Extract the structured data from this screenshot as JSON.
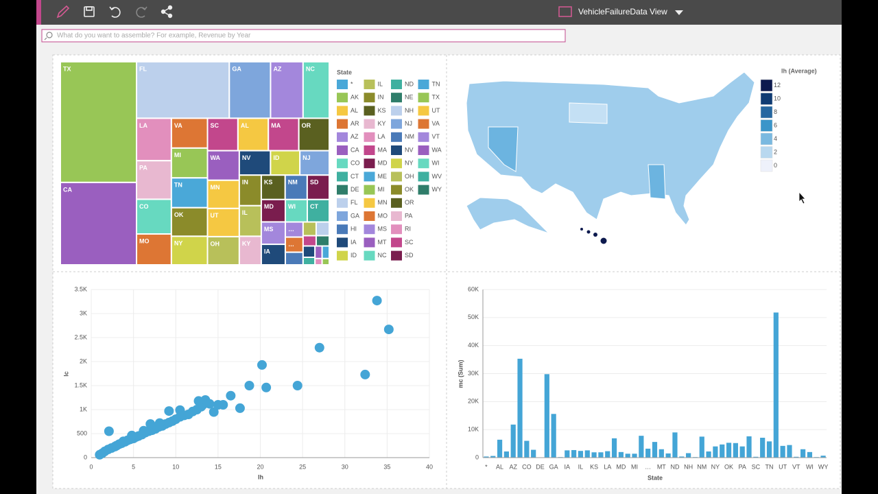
{
  "toolbar": {
    "view_title": "VehicleFailureData View"
  },
  "search": {
    "placeholder": "What do you want to assemble? For example, Revenue by Year"
  },
  "chart_data": [
    {
      "type": "treemap",
      "legend_title": "State",
      "legend": [
        {
          "name": "*",
          "color": "#4aa8d8"
        },
        {
          "name": "AK",
          "color": "#98c656"
        },
        {
          "name": "AL",
          "color": "#f5c842"
        },
        {
          "name": "AR",
          "color": "#dd7634"
        },
        {
          "name": "AZ",
          "color": "#a387dc"
        },
        {
          "name": "CA",
          "color": "#9a5fbf"
        },
        {
          "name": "CO",
          "color": "#67d9c0"
        },
        {
          "name": "CT",
          "color": "#3fb0a0"
        },
        {
          "name": "DE",
          "color": "#2f7d6a"
        },
        {
          "name": "FL",
          "color": "#bcd0ec"
        },
        {
          "name": "GA",
          "color": "#7ea6dc"
        },
        {
          "name": "HI",
          "color": "#4a7ab8"
        },
        {
          "name": "IA",
          "color": "#1f4a7a"
        },
        {
          "name": "ID",
          "color": "#d0d44a"
        },
        {
          "name": "IL",
          "color": "#b8c05a"
        },
        {
          "name": "IN",
          "color": "#8b8b2a"
        },
        {
          "name": "KS",
          "color": "#5a6020"
        },
        {
          "name": "KY",
          "color": "#e8b8d0"
        },
        {
          "name": "LA",
          "color": "#e28fbd"
        },
        {
          "name": "MA",
          "color": "#c2478c"
        },
        {
          "name": "MD",
          "color": "#7a1d4e"
        },
        {
          "name": "ME",
          "color": "#4aa8d8"
        },
        {
          "name": "MI",
          "color": "#98c656"
        },
        {
          "name": "MN",
          "color": "#f5c842"
        },
        {
          "name": "MO",
          "color": "#dd7634"
        },
        {
          "name": "MS",
          "color": "#a387dc"
        },
        {
          "name": "MT",
          "color": "#9a5fbf"
        },
        {
          "name": "NC",
          "color": "#67d9c0"
        },
        {
          "name": "ND",
          "color": "#3fb0a0"
        },
        {
          "name": "NE",
          "color": "#2f7d6a"
        },
        {
          "name": "NH",
          "color": "#bcd0ec"
        },
        {
          "name": "NJ",
          "color": "#7ea6dc"
        },
        {
          "name": "NM",
          "color": "#4a7ab8"
        },
        {
          "name": "NV",
          "color": "#1f4a7a"
        },
        {
          "name": "NY",
          "color": "#d0d44a"
        },
        {
          "name": "OH",
          "color": "#b8c05a"
        },
        {
          "name": "OK",
          "color": "#8b8b2a"
        },
        {
          "name": "OR",
          "color": "#5a6020"
        },
        {
          "name": "PA",
          "color": "#e8b8d0"
        },
        {
          "name": "RI",
          "color": "#e28fbd"
        },
        {
          "name": "SC",
          "color": "#c2478c"
        },
        {
          "name": "SD",
          "color": "#7a1d4e"
        },
        {
          "name": "TN",
          "color": "#4aa8d8"
        },
        {
          "name": "TX",
          "color": "#98c656"
        },
        {
          "name": "UT",
          "color": "#f5c842"
        },
        {
          "name": "VA",
          "color": "#dd7634"
        },
        {
          "name": "VT",
          "color": "#a387dc"
        },
        {
          "name": "WA",
          "color": "#9a5fbf"
        },
        {
          "name": "WI",
          "color": "#67d9c0"
        },
        {
          "name": "WV",
          "color": "#3fb0a0"
        },
        {
          "name": "WY",
          "color": "#2f7d6a"
        }
      ],
      "tiles": [
        {
          "label": "TX",
          "value": 205,
          "color": "#98c656"
        },
        {
          "label": "CA",
          "value": 140,
          "color": "#9a5fbf"
        },
        {
          "label": "FL",
          "value": 117,
          "color": "#bcd0ec"
        },
        {
          "label": "GA",
          "value": 52,
          "color": "#7ea6dc"
        },
        {
          "label": "AZ",
          "value": 41,
          "color": "#a387dc"
        },
        {
          "label": "NC",
          "value": 33,
          "color": "#67d9c0"
        },
        {
          "label": "LA",
          "value": 33,
          "color": "#e28fbd"
        },
        {
          "label": "PA",
          "value": 30,
          "color": "#e8b8d0"
        },
        {
          "label": "CO",
          "value": 27,
          "color": "#67d9c0"
        },
        {
          "label": "MO",
          "value": 24,
          "color": "#dd7634"
        },
        {
          "label": "VA",
          "value": 24,
          "color": "#dd7634"
        },
        {
          "label": "MI",
          "value": 24,
          "color": "#98c656"
        },
        {
          "label": "TN",
          "value": 24,
          "color": "#4aa8d8"
        },
        {
          "label": "OK",
          "value": 23,
          "color": "#8b8b2a"
        },
        {
          "label": "NY",
          "value": 23,
          "color": "#d0d44a"
        },
        {
          "label": "SC",
          "value": 22,
          "color": "#c2478c"
        },
        {
          "label": "AL",
          "value": 22,
          "color": "#f5c842"
        },
        {
          "label": "MA",
          "value": 22,
          "color": "#c2478c"
        },
        {
          "label": "OR",
          "value": 22,
          "color": "#5a6020"
        },
        {
          "label": "WA",
          "value": 21,
          "color": "#9a5fbf"
        },
        {
          "label": "MN",
          "value": 20,
          "color": "#f5c842"
        },
        {
          "label": "UT",
          "value": 20,
          "color": "#f5c842"
        },
        {
          "label": "OH",
          "value": 20,
          "color": "#b8c05a"
        },
        {
          "label": "NV",
          "value": 17,
          "color": "#1f4a7a"
        },
        {
          "label": "ID",
          "value": 16,
          "color": "#d0d44a"
        },
        {
          "label": "NJ",
          "value": 16,
          "color": "#7ea6dc"
        },
        {
          "label": "IN",
          "value": 15,
          "color": "#8b8b2a"
        },
        {
          "label": "IL",
          "value": 15,
          "color": "#b8c05a"
        },
        {
          "label": "KY",
          "value": 14,
          "color": "#e8b8d0"
        },
        {
          "label": "KS",
          "value": 13,
          "color": "#5a6020"
        },
        {
          "label": "NM",
          "value": 12,
          "color": "#4a7ab8"
        },
        {
          "label": "SD",
          "value": 12,
          "color": "#7a1d4e"
        },
        {
          "label": "MD",
          "value": 12,
          "color": "#7a1d4e"
        },
        {
          "label": "MS",
          "value": 12,
          "color": "#a387dc"
        },
        {
          "label": "IA",
          "value": 11,
          "color": "#1f4a7a"
        },
        {
          "label": "WI",
          "value": 11,
          "color": "#67d9c0"
        },
        {
          "label": "CT",
          "value": 11,
          "color": "#3fb0a0"
        },
        {
          "label": "…",
          "value": 6,
          "color": "#a387dc"
        },
        {
          "label": "…",
          "value": 6,
          "color": "#dd7634"
        },
        {
          "label": null,
          "value": 5,
          "color": "#4a7ab8"
        },
        {
          "label": null,
          "value": 4,
          "color": "#b8c05a"
        },
        {
          "label": null,
          "value": 4,
          "color": "#bcd0ec"
        },
        {
          "label": null,
          "value": 3,
          "color": "#c2478c"
        },
        {
          "label": null,
          "value": 3,
          "color": "#2f7d6a"
        },
        {
          "label": null,
          "value": 3,
          "color": "#1f4a7a"
        },
        {
          "label": null,
          "value": 2,
          "color": "#3fb0a0"
        },
        {
          "label": null,
          "value": 2,
          "color": "#9a5fbf"
        },
        {
          "label": null,
          "value": 2,
          "color": "#4aa8d8"
        },
        {
          "label": null,
          "value": 1,
          "color": "#e28fbd"
        },
        {
          "label": null,
          "value": 1,
          "color": "#98c656"
        }
      ]
    },
    {
      "type": "choropleth",
      "legend_title": "lh (Average)",
      "legend_ticks": [
        12,
        10,
        8,
        6,
        4,
        2,
        0
      ],
      "legend_colors": [
        "#0d1a4e",
        "#0f3b73",
        "#2566a0",
        "#3a95c9",
        "#7ab9e0",
        "#b8d8ef",
        "#eef1fb"
      ]
    },
    {
      "type": "scatter",
      "x_label": "lh",
      "y_label": "lc",
      "color": "#44a5d6",
      "grid": true,
      "xlim": [
        0,
        40
      ],
      "xticks": [
        0,
        5,
        10,
        15,
        20,
        25,
        30,
        35,
        40
      ],
      "ylim": [
        0,
        3500
      ],
      "yticks": [
        0,
        500,
        {
          "value": 1000,
          "label": "1K"
        },
        {
          "value": 1500,
          "label": "1.5K"
        },
        {
          "value": 2000,
          "label": "2K"
        },
        {
          "value": 2500,
          "label": "2.5K"
        },
        {
          "value": 3000,
          "label": "3K"
        },
        {
          "value": 3500,
          "label": "3.5K"
        }
      ],
      "x": [
        1,
        1.3,
        1.6,
        2,
        2.4,
        2.8,
        3,
        3.3,
        3.6,
        4,
        4.3,
        4.6,
        5,
        5.3,
        5.6,
        6,
        6.4,
        6.8,
        7.2,
        7.6,
        8,
        8.4,
        8.8,
        9.2,
        9.6,
        10,
        10.5,
        11,
        11.5,
        12,
        12.5,
        13,
        13.2,
        13.5,
        14,
        14.5,
        15,
        15.6,
        16.5,
        17.6,
        18.7,
        20.2,
        20.7,
        24.4,
        27,
        32.4,
        33.8,
        35.2,
        2.1,
        4.8,
        7,
        9.2,
        10.5,
        12.7,
        3.8,
        6.2,
        8.1
      ],
      "values": [
        60,
        90,
        130,
        170,
        200,
        230,
        250,
        280,
        300,
        330,
        360,
        380,
        400,
        430,
        450,
        480,
        520,
        550,
        570,
        600,
        640,
        660,
        700,
        730,
        760,
        800,
        850,
        880,
        900,
        960,
        1000,
        1060,
        1100,
        1200,
        1120,
        950,
        1100,
        1100,
        1290,
        1030,
        1500,
        1930,
        1460,
        1500,
        2290,
        1730,
        3270,
        2670,
        550,
        460,
        700,
        970,
        990,
        1180,
        340,
        560,
        720
      ]
    },
    {
      "type": "bar",
      "x_label": "State",
      "y_label": "mc (Sum)",
      "color": "#44a5d6",
      "grid": true,
      "ylim": [
        0,
        60000
      ],
      "yticks": [
        0,
        {
          "value": 10000,
          "label": "10K"
        },
        {
          "value": 20000,
          "label": "20K"
        },
        {
          "value": 30000,
          "label": "30K"
        },
        {
          "value": 40000,
          "label": "40K"
        },
        {
          "value": 50000,
          "label": "50K"
        },
        {
          "value": 60000,
          "label": "60K"
        }
      ],
      "categories": [
        "*",
        null,
        "AL",
        null,
        "AZ",
        null,
        "CO",
        null,
        "DE",
        null,
        "GA",
        null,
        "IA",
        null,
        "IL",
        null,
        "KS",
        null,
        "LA",
        null,
        "MD",
        null,
        "MI",
        null,
        "…",
        null,
        "MT",
        null,
        "ND",
        null,
        "NH",
        null,
        "NM",
        null,
        "NY",
        null,
        "OK",
        null,
        "PA",
        null,
        "SC",
        null,
        "TN",
        null,
        "UT",
        null,
        "VT",
        null,
        "WI",
        null,
        "WY"
      ],
      "values": [
        400,
        600,
        6400,
        2200,
        11800,
        35300,
        6000,
        2800,
        100,
        29800,
        15600,
        200,
        2600,
        2700,
        2400,
        2600,
        1900,
        1900,
        2300,
        6900,
        2000,
        1400,
        1400,
        7800,
        3200,
        5600,
        3000,
        1500,
        9000,
        400,
        1600,
        200,
        7500,
        2200,
        4000,
        4700,
        5300,
        5200,
        4000,
        7600,
        300,
        7100,
        5800,
        51800,
        4200,
        4500,
        300,
        3000,
        2000,
        200,
        700
      ]
    }
  ]
}
